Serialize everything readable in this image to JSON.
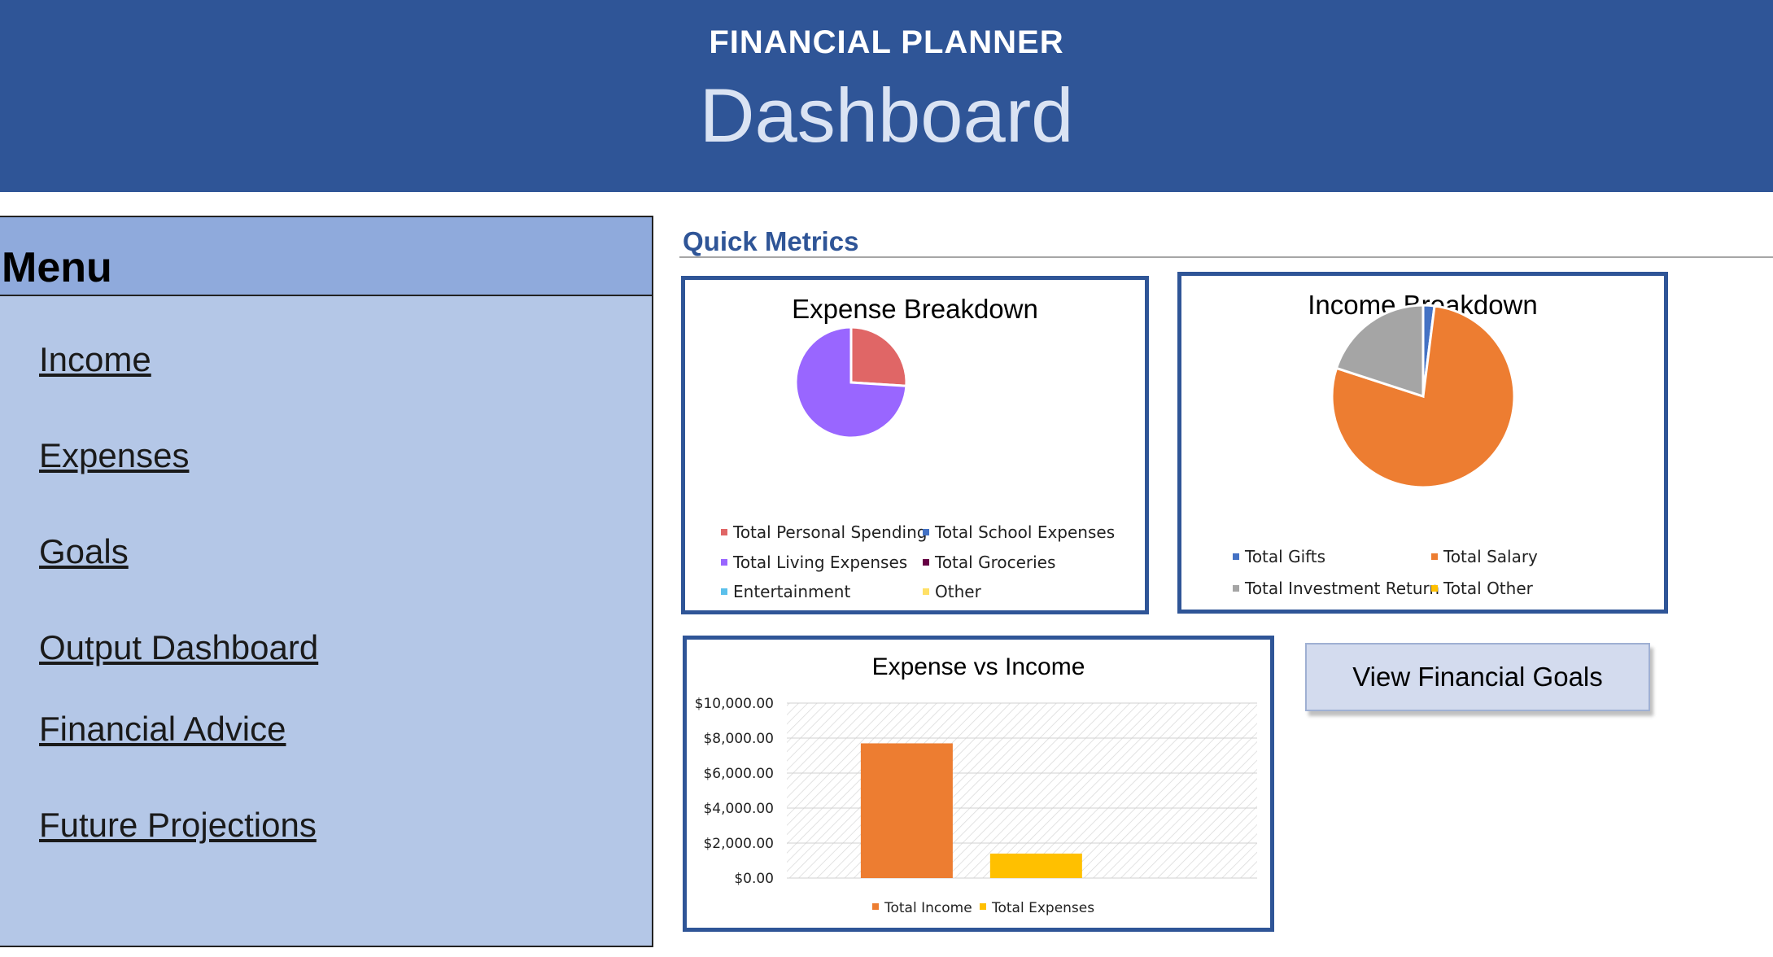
{
  "header": {
    "subtitle": "FINANCIAL PLANNER",
    "title": "Dashboard"
  },
  "menu": {
    "title": "Menu",
    "items": [
      {
        "label": "Income"
      },
      {
        "label": "Expenses"
      },
      {
        "label": "Goals"
      },
      {
        "label": "Output Dashboard"
      },
      {
        "label": "Financial Advice"
      },
      {
        "label": "Future Projections"
      }
    ]
  },
  "quick_metrics": {
    "title": "Quick Metrics"
  },
  "goals_button": {
    "label": "View Financial Goals"
  },
  "chart_data": [
    {
      "type": "pie",
      "title": "Expense Breakdown",
      "categories": [
        "Total Personal Spending",
        "Total School Expenses",
        "Total Living Expenses",
        "Total Groceries",
        "Entertainment",
        "Other"
      ],
      "values": [
        26,
        0,
        74,
        0,
        0,
        0
      ],
      "colors": [
        "#e06666",
        "#4472c4",
        "#9966ff",
        "#660044",
        "#5bc0eb",
        "#ffe066"
      ],
      "legend_position": "bottom"
    },
    {
      "type": "pie",
      "title": "Income Breakdown",
      "categories": [
        "Total Gifts",
        "Total Salary",
        "Total Investment Return",
        "Total Other"
      ],
      "values": [
        2,
        78,
        20,
        0
      ],
      "colors": [
        "#4472c4",
        "#ed7d31",
        "#a5a5a5",
        "#ffc000"
      ],
      "legend_position": "bottom"
    },
    {
      "type": "bar",
      "title": "Expense vs Income",
      "categories": [
        "Total Income",
        "Total Expenses"
      ],
      "values": [
        7700,
        1400
      ],
      "colors": [
        "#ed7d31",
        "#ffc000"
      ],
      "ylim": [
        0,
        10000
      ],
      "yticks": [
        "$0.00",
        "$2,000.00",
        "$4,000.00",
        "$6,000.00",
        "$8,000.00",
        "$10,000.00"
      ],
      "legend_position": "bottom"
    }
  ]
}
